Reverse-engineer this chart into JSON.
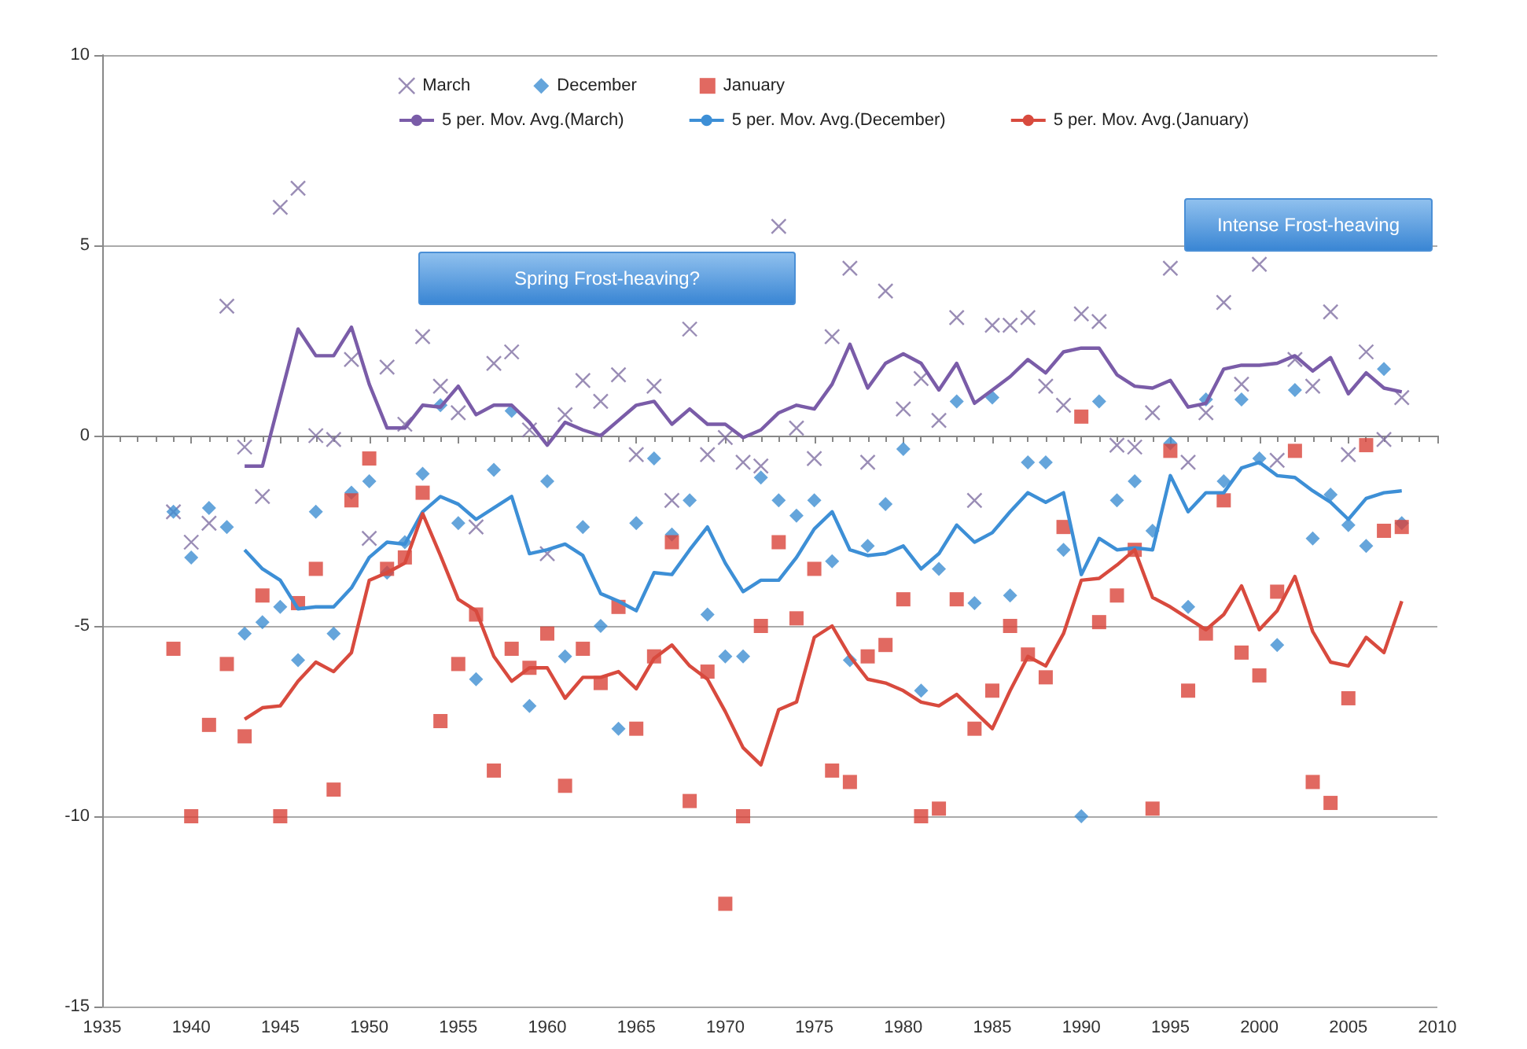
{
  "chart_data": {
    "type": "scatter",
    "x": [
      1939,
      1940,
      1941,
      1942,
      1943,
      1944,
      1945,
      1946,
      1947,
      1948,
      1949,
      1950,
      1951,
      1952,
      1953,
      1954,
      1955,
      1956,
      1957,
      1958,
      1959,
      1960,
      1961,
      1962,
      1963,
      1964,
      1965,
      1966,
      1967,
      1968,
      1969,
      1970,
      1971,
      1972,
      1973,
      1974,
      1975,
      1976,
      1977,
      1978,
      1979,
      1980,
      1981,
      1982,
      1983,
      1984,
      1985,
      1986,
      1987,
      1988,
      1989,
      1990,
      1991,
      1992,
      1993,
      1994,
      1995,
      1996,
      1997,
      1998,
      1999,
      2000,
      2001,
      2002,
      2003,
      2004,
      2005,
      2006,
      2007,
      2008
    ],
    "xlim": [
      1935,
      2010
    ],
    "xticks": [
      1935,
      1940,
      1945,
      1950,
      1955,
      1960,
      1965,
      1970,
      1975,
      1980,
      1985,
      1990,
      1995,
      2000,
      2005,
      2010
    ],
    "ylim": [
      -15,
      10
    ],
    "yticks": [
      -15,
      -10,
      -5,
      0,
      5,
      10
    ],
    "grid": "y",
    "legend": "top",
    "annotations": [
      "Spring Frost-heaving?",
      "Intense Frost-heaving"
    ],
    "series": [
      {
        "name": "March",
        "color": "#7f6fa3",
        "marker": "cross",
        "values": [
          -2.0,
          -2.8,
          -2.3,
          3.4,
          -0.3,
          -1.6,
          6.0,
          6.5,
          0.0,
          -0.1,
          2.0,
          -2.7,
          1.8,
          0.3,
          2.6,
          1.3,
          0.6,
          -2.4,
          1.9,
          2.2,
          0.15,
          -3.1,
          0.55,
          1.45,
          0.9,
          1.6,
          -0.5,
          1.3,
          -1.7,
          2.8,
          -0.5,
          -0.05,
          -0.7,
          -0.8,
          5.5,
          0.2,
          -0.6,
          2.6,
          4.4,
          -0.7,
          3.8,
          0.7,
          1.5,
          0.4,
          3.1,
          -1.7,
          2.9,
          2.9,
          3.1,
          1.3,
          0.8,
          3.2,
          3.0,
          -0.25,
          -0.3,
          0.6,
          4.4,
          -0.7,
          0.6,
          3.5,
          1.35,
          4.5,
          -0.65,
          2.0,
          1.3,
          3.25,
          -0.5,
          2.2,
          -0.1,
          1.0
        ]
      },
      {
        "name": "December",
        "color": "#3f8fd2",
        "marker": "diamond",
        "values": [
          -2.0,
          -3.2,
          -1.9,
          -2.4,
          -5.2,
          -4.9,
          -4.5,
          -5.9,
          -2.0,
          -5.2,
          -1.5,
          -1.2,
          -3.6,
          -2.8,
          -1.0,
          0.8,
          -2.3,
          -6.4,
          -0.9,
          0.65,
          -7.1,
          -1.2,
          -5.8,
          -2.4,
          -5.0,
          -7.7,
          -2.3,
          -0.6,
          -2.6,
          -1.7,
          -4.7,
          -5.8,
          -5.8,
          -1.1,
          -1.7,
          -2.1,
          -1.7,
          -3.3,
          -5.9,
          -2.9,
          -1.8,
          -0.35,
          -6.7,
          -3.5,
          0.9,
          -4.4,
          1.0,
          -4.2,
          -0.7,
          -0.7,
          -3.0,
          -10.0,
          0.9,
          -1.7,
          -1.2,
          -2.5,
          -0.2,
          -4.5,
          0.95,
          -1.2,
          0.95,
          -0.6,
          -5.5,
          1.2,
          -2.7,
          -1.55,
          -2.35,
          -2.9,
          1.75,
          -2.3
        ]
      },
      {
        "name": "January",
        "color": "#d9443a",
        "marker": "square",
        "values": [
          -5.6,
          -10.0,
          -7.6,
          -6.0,
          -7.9,
          -4.2,
          -10.0,
          -4.4,
          -3.5,
          -9.3,
          -1.7,
          -0.6,
          -3.5,
          -3.2,
          -1.5,
          -7.5,
          -6.0,
          -4.7,
          -8.8,
          -5.6,
          -6.1,
          -5.2,
          -9.2,
          -5.6,
          -6.5,
          -4.5,
          -7.7,
          -5.8,
          -2.8,
          -9.6,
          -6.2,
          -12.3,
          -10.0,
          -5.0,
          -2.8,
          -4.8,
          -3.5,
          -8.8,
          -9.1,
          -5.8,
          -5.5,
          -4.3,
          -10.0,
          -9.8,
          -4.3,
          -7.7,
          -6.7,
          -5.0,
          -5.75,
          -6.35,
          -2.4,
          0.5,
          -4.9,
          -4.2,
          -3.0,
          -9.8,
          -0.4,
          -6.7,
          -5.2,
          -1.7,
          -5.7,
          -6.3,
          -4.1,
          -0.4,
          -9.1,
          -9.65,
          -6.9,
          -0.25,
          -2.5,
          -2.4
        ]
      },
      {
        "name": "5 per. Mov. Avg.(March)",
        "type": "line",
        "color": "#7a5ca8",
        "marker": "none",
        "values": [
          null,
          null,
          null,
          null,
          -0.8,
          -0.8,
          1.0,
          2.8,
          2.1,
          2.1,
          2.85,
          1.35,
          0.2,
          0.2,
          0.8,
          0.75,
          1.3,
          0.55,
          0.8,
          0.8,
          0.35,
          -0.25,
          0.35,
          0.15,
          0.0,
          0.4,
          0.8,
          0.9,
          0.3,
          0.7,
          0.3,
          0.3,
          -0.05,
          0.15,
          0.6,
          0.8,
          0.7,
          1.35,
          2.4,
          1.25,
          1.9,
          2.15,
          1.9,
          1.2,
          1.9,
          0.85,
          1.2,
          1.55,
          2.0,
          1.65,
          2.2,
          2.3,
          2.3,
          1.6,
          1.3,
          1.25,
          1.45,
          0.75,
          0.85,
          1.75,
          1.85,
          1.85,
          1.9,
          2.1,
          1.7,
          2.05,
          1.1,
          1.65,
          1.25,
          1.15
        ]
      },
      {
        "name": "5 per. Mov. Avg.(December)",
        "type": "line",
        "color": "#3d8fd6",
        "marker": "none",
        "values": [
          null,
          null,
          null,
          null,
          -3.0,
          -3.5,
          -3.8,
          -4.55,
          -4.5,
          -4.5,
          -4.0,
          -3.2,
          -2.8,
          -2.85,
          -2.0,
          -1.6,
          -1.8,
          -2.2,
          -1.9,
          -1.6,
          -3.1,
          -3.0,
          -2.85,
          -3.15,
          -4.15,
          -4.35,
          -4.6,
          -3.6,
          -3.65,
          -3.0,
          -2.4,
          -3.35,
          -4.1,
          -3.8,
          -3.8,
          -3.2,
          -2.45,
          -2.0,
          -3.0,
          -3.15,
          -3.1,
          -2.9,
          -3.5,
          -3.1,
          -2.35,
          -2.8,
          -2.55,
          -2.0,
          -1.5,
          -1.75,
          -1.5,
          -3.65,
          -2.7,
          -3.0,
          -2.95,
          -3.0,
          -1.05,
          -2.0,
          -1.5,
          -1.5,
          -0.85,
          -0.7,
          -1.05,
          -1.1,
          -1.45,
          -1.75,
          -2.2,
          -1.65,
          -1.5,
          -1.45
        ]
      },
      {
        "name": "5 per. Mov. Avg.(January)",
        "type": "line",
        "color": "#d84a3e",
        "marker": "none",
        "values": [
          null,
          null,
          null,
          null,
          -7.45,
          -7.15,
          -7.1,
          -6.45,
          -5.95,
          -6.2,
          -5.7,
          -3.8,
          -3.6,
          -3.35,
          -2.05,
          -3.15,
          -4.3,
          -4.6,
          -5.8,
          -6.45,
          -6.1,
          -6.1,
          -6.9,
          -6.35,
          -6.35,
          -6.2,
          -6.65,
          -5.85,
          -5.5,
          -6.05,
          -6.4,
          -7.25,
          -8.2,
          -8.65,
          -7.2,
          -7.0,
          -5.3,
          -5.0,
          -5.8,
          -6.4,
          -6.5,
          -6.7,
          -7.0,
          -7.1,
          -6.8,
          -7.25,
          -7.7,
          -6.7,
          -5.8,
          -6.05,
          -5.2,
          -3.8,
          -3.75,
          -3.4,
          -3.0,
          -4.25,
          -4.5,
          -4.8,
          -5.1,
          -4.7,
          -3.95,
          -5.1,
          -4.6,
          -3.7,
          -5.15,
          -5.95,
          -6.05,
          -5.3,
          -5.7,
          -4.35
        ]
      }
    ]
  }
}
